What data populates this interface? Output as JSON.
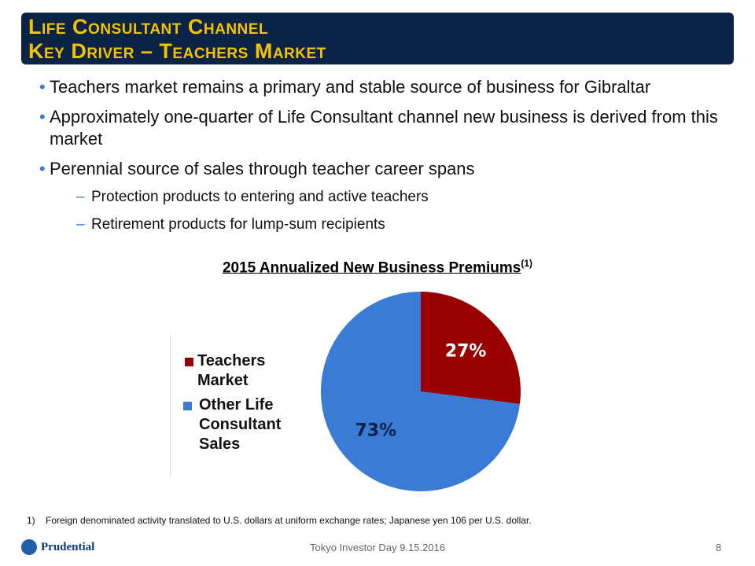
{
  "header": {
    "title_lines": [
      "Life Consultant Channel",
      "Key Driver – Teachers Market"
    ]
  },
  "bullets": [
    "Teachers market remains a primary and stable source of business for Gibraltar",
    "Approximately one-quarter of Life Consultant channel new business is derived from this market",
    "Perennial source of sales through teacher career spans"
  ],
  "sub_bullets": [
    "Protection products to entering and active teachers",
    "Retirement products for lump-sum recipients"
  ],
  "chart_data": {
    "type": "pie",
    "title": "2015 Annualized New Business Premiums",
    "title_note": "(1)",
    "categories": [
      "Teachers Market",
      "Other Life Consultant Sales"
    ],
    "values": [
      27,
      73
    ],
    "value_labels": [
      "27%",
      "73%"
    ],
    "colors": [
      "#990000",
      "#3a7bd5"
    ]
  },
  "footnote": {
    "marker": "1)",
    "text": "Foreign denominated activity translated to U.S. dollars at uniform exchange rates; Japanese yen 106 per U.S. dollar."
  },
  "footer": {
    "logo": "Prudential",
    "event": "Tokyo Investor Day 9.15.2016",
    "page": "8"
  }
}
